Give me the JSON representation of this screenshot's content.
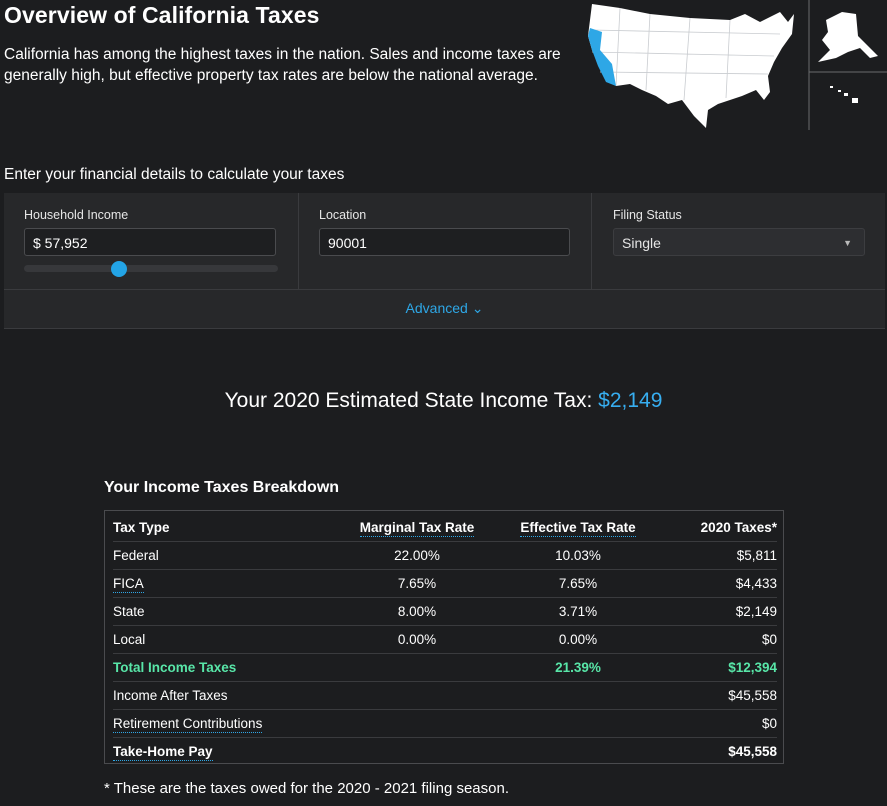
{
  "header": {
    "title": "Overview of California Taxes",
    "description": "California has among the highest taxes in the nation. Sales and income taxes are generally high, but effective property tax rates are below the national average."
  },
  "map": {
    "highlight_state": "California",
    "highlight_color": "#2ea7e6"
  },
  "form": {
    "prompt": "Enter your financial details to calculate your taxes",
    "income_label": "Household Income",
    "income_value": "$ 57,952",
    "income_slider_fraction": 0.37,
    "location_label": "Location",
    "location_value": "90001",
    "filing_label": "Filing Status",
    "filing_value": "Single",
    "advanced_label": "Advanced ⌄"
  },
  "estimate": {
    "text": "Your 2020 Estimated State Income Tax: ",
    "amount": "$2,149"
  },
  "breakdown": {
    "title": "Your Income Taxes Breakdown",
    "columns": [
      "Tax Type",
      "Marginal Tax Rate",
      "Effective Tax Rate",
      "2020 Taxes*"
    ],
    "rows": [
      {
        "type": "Federal",
        "marginal": "22.00%",
        "effective": "10.03%",
        "taxes": "$5,811"
      },
      {
        "type": "FICA",
        "marginal": "7.65%",
        "effective": "7.65%",
        "taxes": "$4,433"
      },
      {
        "type": "State",
        "marginal": "8.00%",
        "effective": "3.71%",
        "taxes": "$2,149"
      },
      {
        "type": "Local",
        "marginal": "0.00%",
        "effective": "0.00%",
        "taxes": "$0"
      }
    ],
    "total": {
      "label": "Total Income Taxes",
      "effective": "21.39%",
      "taxes": "$12,394"
    },
    "after_taxes": {
      "label": "Income After Taxes",
      "value": "$45,558"
    },
    "retirement": {
      "label": "Retirement Contributions",
      "value": "$0"
    },
    "take_home": {
      "label": "Take-Home Pay",
      "value": "$45,558"
    },
    "footnote": "* These are the taxes owed for the 2020 - 2021 filing season."
  },
  "colors": {
    "accent": "#2ea7e6",
    "total_green": "#58e6a8",
    "background": "#1c1d1f"
  }
}
